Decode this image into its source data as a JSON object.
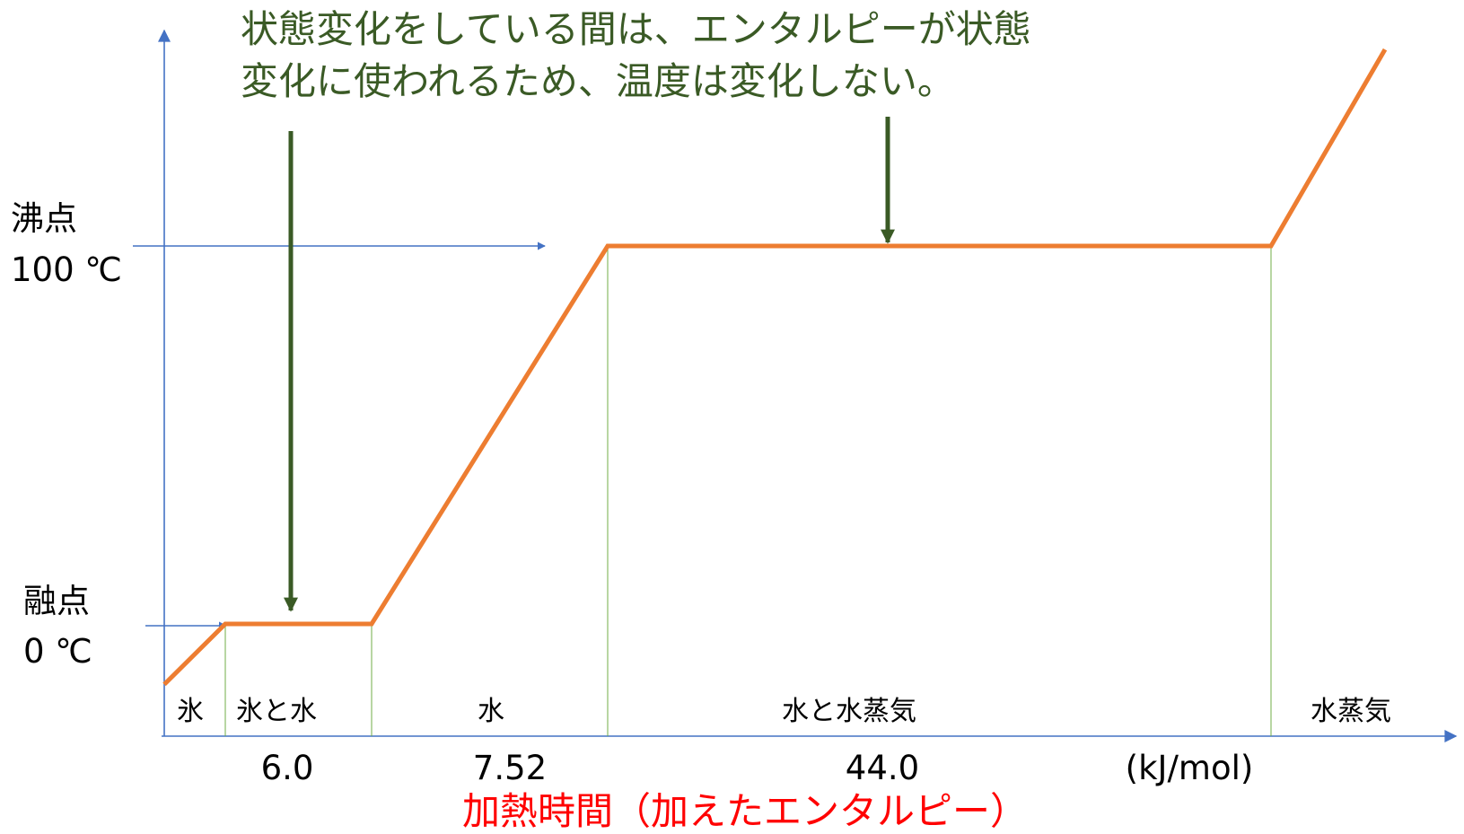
{
  "chart_data": {
    "type": "line",
    "title": "",
    "annotation_lines": [
      "状態変化をしている間は、エンタルピーが状態",
      "変化に使われるため、温度は変化しない。"
    ],
    "xlabel": "加熱時間（加えたエンタルピー）",
    "xunit": "(kJ/mol)",
    "y_ticks": [
      {
        "name": "融点",
        "value_label": "0 ℃",
        "value": 0
      },
      {
        "name": "沸点",
        "value_label": "100 ℃",
        "value": 100
      }
    ],
    "phases": [
      "氷",
      "氷と水",
      "水",
      "水と水蒸気",
      "水蒸気"
    ],
    "enthalpy_labels": [
      "6.0",
      "7.52",
      "44.0"
    ],
    "series": [
      {
        "x": [
          0,
          1,
          3.4,
          7.3,
          18.3,
          20.2
        ],
        "y": [
          -16,
          0,
          0,
          100,
          100,
          152
        ]
      }
    ],
    "colors": {
      "line": "#ed7d31",
      "axis": "#4472c4",
      "annotation": "#3a5a25",
      "divider": "#70ad47",
      "xlabel": "#ff0000"
    },
    "grid": false,
    "legend": "none"
  }
}
